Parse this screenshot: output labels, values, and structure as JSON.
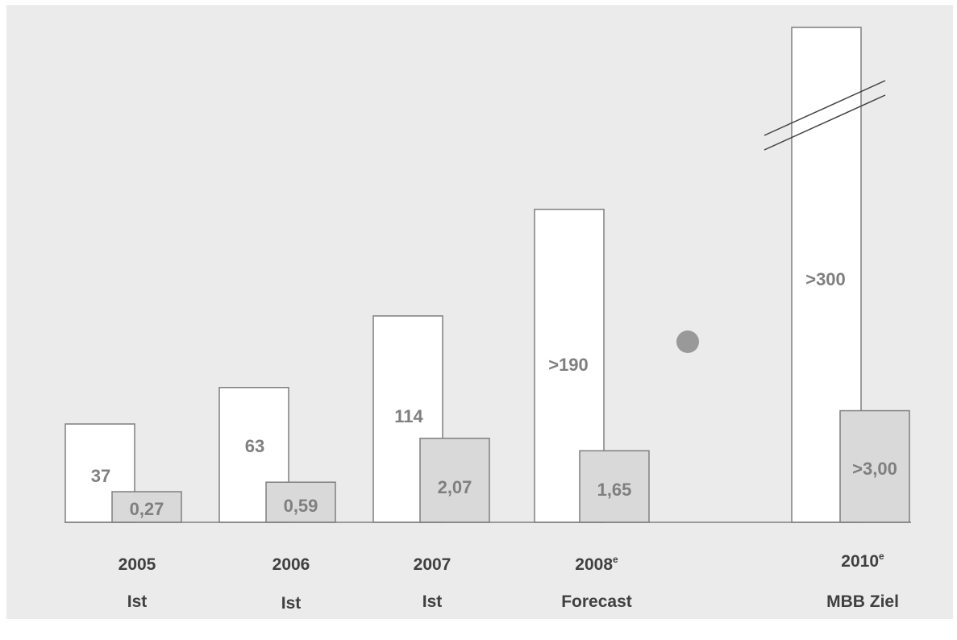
{
  "chart_data": {
    "type": "bar",
    "categories": [
      {
        "year": "2005",
        "sup": "",
        "sub": "Ist"
      },
      {
        "year": "2006",
        "sup": "",
        "sub": "Ist"
      },
      {
        "year": "2007",
        "sup": "",
        "sub": "Ist"
      },
      {
        "year": "2008",
        "sup": "e",
        "sub": "Forecast"
      },
      {
        "year": "2010",
        "sup": "e",
        "sub": "MBB Ziel"
      }
    ],
    "series": [
      {
        "values": [
          37,
          63,
          114,
          190,
          300
        ],
        "labels": [
          "37",
          "63",
          "114",
          ">190",
          ">300"
        ],
        "color": "#ffffff",
        "axis_break_at_index": 4
      },
      {
        "values": [
          0.27,
          0.59,
          2.07,
          1.65,
          3.0
        ],
        "labels": [
          "0,27",
          "0,59",
          "2,07",
          "1,65",
          ">3,00"
        ],
        "color": "#d9d9d9"
      }
    ],
    "annotations": [
      {
        "type": "dot",
        "between": [
          "2008",
          "2010"
        ],
        "color": "#999999"
      }
    ],
    "grid": false,
    "legend": "none",
    "colors": {
      "background": "#ebebeb",
      "outline": "#7f7f7f",
      "text": "#404040",
      "value_text": "#7f7f7f"
    }
  }
}
